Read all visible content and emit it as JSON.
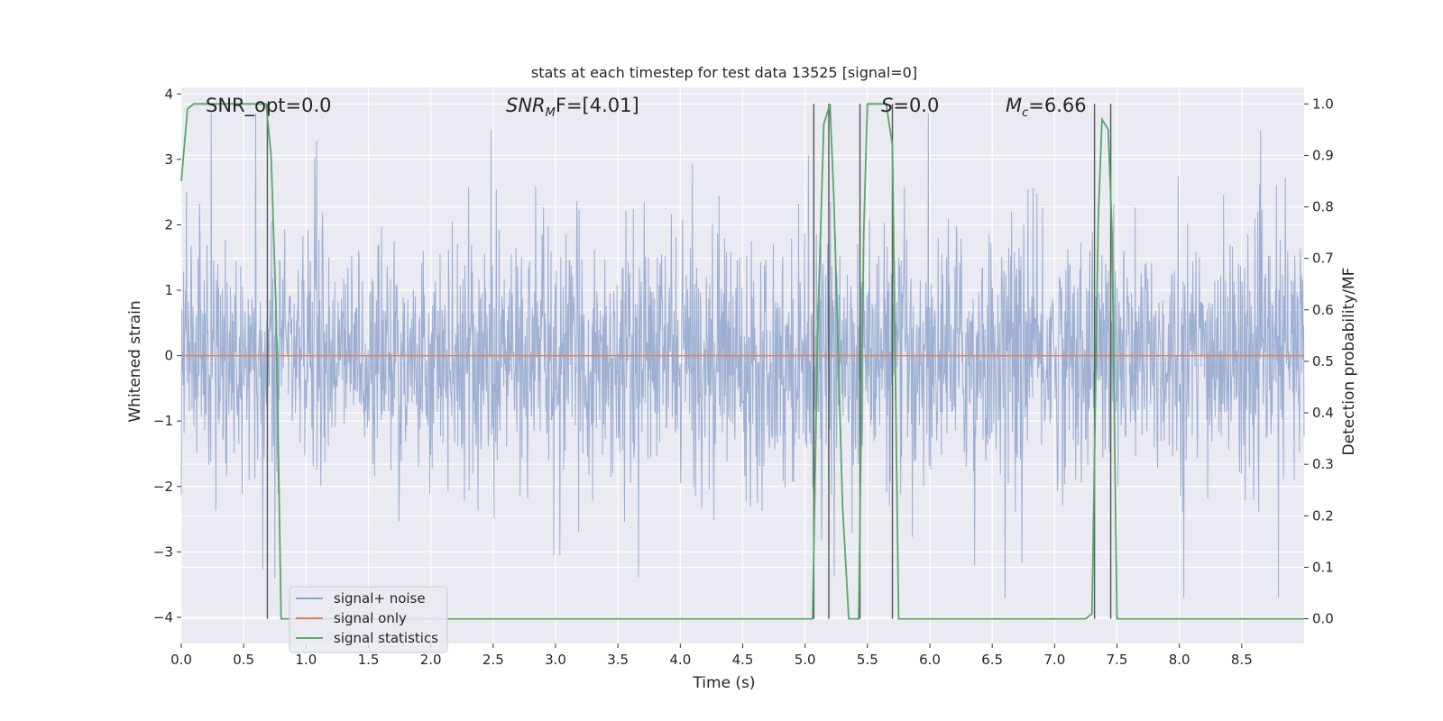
{
  "chart_data": {
    "type": "line",
    "title": "stats at each timestep for test data 13525 [signal=0]",
    "xlabel": "Time (s)",
    "ylabel_left": "Whitened strain",
    "ylabel_right": "Detection probability/MF",
    "xlim": [
      0.0,
      9.0
    ],
    "ylim_left": [
      -4.4,
      4.1
    ],
    "ylim_right": [
      -0.048,
      1.032
    ],
    "x_ticks": [
      "0.0",
      "0.5",
      "1.0",
      "1.5",
      "2.0",
      "2.5",
      "3.0",
      "3.5",
      "4.0",
      "4.5",
      "5.0",
      "5.5",
      "6.0",
      "6.5",
      "7.0",
      "7.5",
      "8.0",
      "8.5"
    ],
    "y_ticks_left": [
      "4",
      "3",
      "2",
      "1",
      "0",
      "−1",
      "−2",
      "−3",
      "−4"
    ],
    "y_ticks_right": [
      "1.0",
      "0.9",
      "0.8",
      "0.7",
      "0.6",
      "0.5",
      "0.4",
      "0.3",
      "0.2",
      "0.1",
      "0.0"
    ],
    "grid": true,
    "legend_position": "bottom-left",
    "colors": {
      "signal_noise": "#8fa4cc",
      "signal_only": "#dd8452",
      "signal_statistics": "#55a868",
      "vlines": "#555555",
      "background": "#eaeaf2",
      "grid": "#ffffff"
    },
    "annotations": {
      "snr_opt": "SNR_opt=0.0",
      "snr_mf_prefix": "SNR",
      "snr_mf_sub": "M",
      "snr_mf_suffix": "F=[4.01]",
      "s_label": "S",
      "s_value": "=0.0",
      "mc_label": "M",
      "mc_sub": "c",
      "mc_value": "=6.66"
    },
    "series": [
      {
        "name": "signal+ noise",
        "note_values": "whitened strain noise, roughly ±1.5 with spikes to about ±3.7",
        "amplitude_typical": 1.4,
        "amplitude_max": 3.7,
        "n_points": 9000
      },
      {
        "name": "signal only",
        "x": [
          0.0,
          9.0
        ],
        "y": [
          0.0,
          0.0
        ]
      },
      {
        "name": "signal statistics",
        "axis": "right",
        "x": [
          0.0,
          0.05,
          0.1,
          0.3,
          0.5,
          0.65,
          0.68,
          0.72,
          0.76,
          0.8,
          0.85,
          2.4,
          2.5,
          5.0,
          5.06,
          5.1,
          5.15,
          5.2,
          5.23,
          5.3,
          5.35,
          5.4,
          5.43,
          5.47,
          5.5,
          5.55,
          5.6,
          5.65,
          5.7,
          5.75,
          6.0,
          6.1,
          7.25,
          7.3,
          7.35,
          7.38,
          7.43,
          7.46,
          7.5,
          9.0
        ],
        "y": [
          0.85,
          0.99,
          1.0,
          1.0,
          1.0,
          1.0,
          1.0,
          0.9,
          0.6,
          0.0,
          0.0,
          0.0,
          0.0,
          0.0,
          0.0,
          0.55,
          0.96,
          1.0,
          0.82,
          0.22,
          0.0,
          0.0,
          0.0,
          0.75,
          1.0,
          1.0,
          1.0,
          1.0,
          0.92,
          0.0,
          0.0,
          0.0,
          0.0,
          0.01,
          0.78,
          0.97,
          0.95,
          0.75,
          0.0,
          0.0
        ]
      }
    ],
    "vlines_x": [
      0.69,
      5.07,
      5.19,
      5.44,
      5.7,
      7.32,
      7.45
    ],
    "vline_range_right": [
      0.0,
      1.0
    ]
  },
  "legend": {
    "items": [
      {
        "label": "signal+ noise",
        "color": "#8fa4cc"
      },
      {
        "label": "signal only",
        "color": "#dd8452"
      },
      {
        "label": "signal statistics",
        "color": "#55a868"
      }
    ]
  }
}
